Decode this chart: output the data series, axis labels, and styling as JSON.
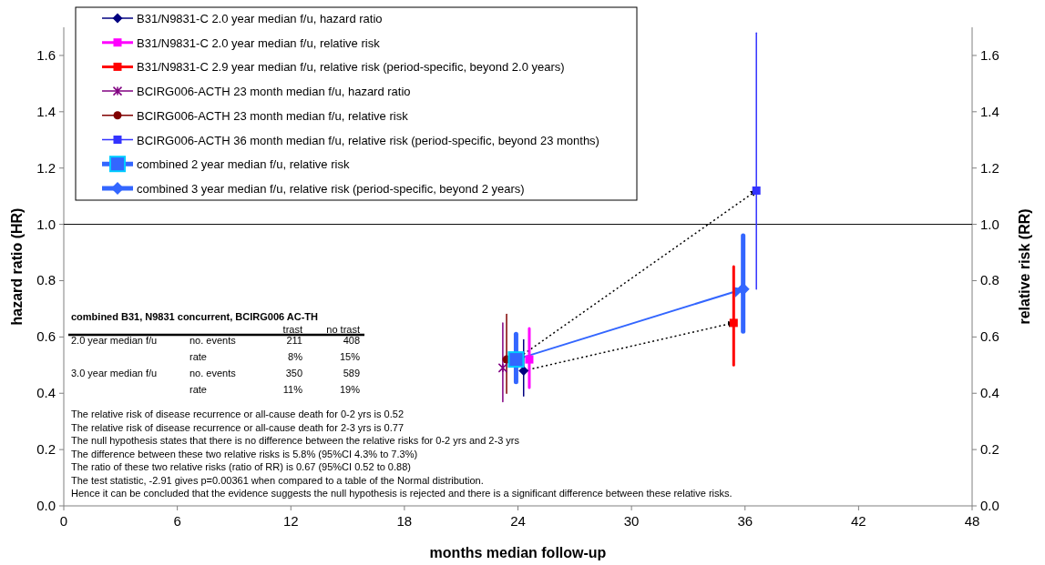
{
  "chart_data": {
    "type": "scatter",
    "xlabel": "months median follow-up",
    "ylabel": "hazard ratio (HR)",
    "y2label": "relative risk (RR)",
    "xlim": [
      0,
      48
    ],
    "xticks": [
      0,
      6,
      12,
      18,
      24,
      30,
      36,
      42,
      48
    ],
    "ylim": [
      0,
      1.7
    ],
    "yticks": [
      {
        "value": 0,
        "label": "0.0"
      },
      0.2,
      0.4,
      0.6,
      0.8,
      {
        "value": 1,
        "label": "1.0"
      },
      1.2,
      1.4,
      1.6
    ],
    "y2lim": [
      0,
      1.7
    ],
    "y2ticks": [
      {
        "value": 0,
        "label": "0.0"
      },
      0.2,
      0.4,
      0.6,
      0.8,
      {
        "value": 1,
        "label": "1.0"
      },
      1.2,
      1.4,
      1.6
    ],
    "grid": false,
    "legend": "top left",
    "ref_lines": [
      {
        "axis": "y",
        "value": 1,
        "color": "#000000"
      }
    ],
    "series": [
      {
        "name": "B31/N9831-C 2.0 year median f/u, hazard ratio",
        "color": "#000080",
        "marker": "diamond",
        "x": [
          24.3
        ],
        "values": [
          0.48
        ],
        "errors": [
          [
            0.39,
            0.59
          ]
        ]
      },
      {
        "name": "B31/N9831-C 2.0 year median f/u, relative risk",
        "color": "#ff00ff",
        "marker": "square",
        "x": [
          24.6
        ],
        "values": [
          0.52
        ],
        "errors": [
          [
            0.42,
            0.63
          ]
        ]
      },
      {
        "name": "B31/N9831-C 2.9 year median f/u, relative risk (period-specific, beyond 2.0 years)",
        "color": "#ff0000",
        "marker": "square",
        "x": [
          35.4
        ],
        "values": [
          0.65
        ],
        "errors": [
          [
            0.5,
            0.85
          ]
        ]
      },
      {
        "name": "BCIRG006-ACTH 23 month median f/u, hazard ratio",
        "color": "#800080",
        "marker": "cross",
        "x": [
          23.2
        ],
        "values": [
          0.49
        ],
        "errors": [
          [
            0.37,
            0.65
          ]
        ]
      },
      {
        "name": "BCIRG006-ACTH 23 month median f/u, relative risk",
        "color": "#800000",
        "marker": "circle",
        "x": [
          23.4
        ],
        "values": [
          0.52
        ],
        "errors": [
          [
            0.4,
            0.68
          ]
        ]
      },
      {
        "name": "BCIRG006-ACTH 36 month median f/u, relative risk (period-specific, beyond 23 months)",
        "color": "#3333ff",
        "marker": "square",
        "x": [
          36.6
        ],
        "values": [
          1.12
        ],
        "errors": [
          [
            0.77,
            1.68
          ]
        ]
      },
      {
        "name": "combined 2 year median f/u, relative risk",
        "color": "#3366ff",
        "marker": "square",
        "x": [
          23.9
        ],
        "values": [
          0.52
        ],
        "errors": [
          [
            0.44,
            0.61
          ]
        ]
      },
      {
        "name": "combined 3 year median f/u, relative risk (period-specific, beyond 2 years)",
        "color": "#3366ff",
        "marker": "diamond",
        "x": [
          35.9
        ],
        "values": [
          0.77
        ],
        "errors": [
          [
            0.62,
            0.96
          ]
        ]
      }
    ],
    "annotations": [
      "combined B31, N9831 concurrent, BCIRG006 AC-TH",
      "trast",
      "no trast",
      "2.0 year median f/u",
      "no. events",
      "211",
      "408",
      "rate",
      "8%",
      "15%",
      "3.0 year median f/u",
      "no. events",
      "350",
      "589",
      "rate",
      "11%",
      "19%",
      "The relative risk of disease recurrence or all-cause death for  0-2 yrs is 0.52",
      "The relative risk of disease recurrence or all-cause death for 2-3 yrs is 0.77",
      "The null hypothesis states that there is no difference between the relative risks for 0-2 yrs and 2-3 yrs",
      "The difference between these two relative risks is 5.8% (95%CI 4.3% to 7.3%)",
      "The ratio of these two relative risks (ratio of RR) is 0.67 (95%CI 0.52 to 0.88)",
      "The test statistic, -2.91 gives p=0.00361 when compared to a table of the Normal distribution.",
      "Hence it can be concluded that the evidence suggests the null hypothesis is rejected and there is a significant difference between these relative risks."
    ]
  }
}
